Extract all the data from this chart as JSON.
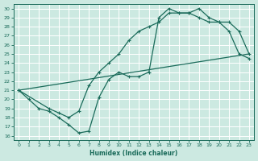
{
  "xlabel": "Humidex (Indice chaleur)",
  "xlim": [
    -0.5,
    23.5
  ],
  "ylim": [
    15.5,
    30.5
  ],
  "xticks": [
    0,
    1,
    2,
    3,
    4,
    5,
    6,
    7,
    8,
    9,
    10,
    11,
    12,
    13,
    14,
    15,
    16,
    17,
    18,
    19,
    20,
    21,
    22,
    23
  ],
  "yticks": [
    16,
    17,
    18,
    19,
    20,
    21,
    22,
    23,
    24,
    25,
    26,
    27,
    28,
    29,
    30
  ],
  "bg_color": "#cce9e1",
  "line_color": "#1a6b5a",
  "grid_color": "#ffffff",
  "line1_x": [
    0,
    1,
    2,
    3,
    4,
    5,
    6,
    7,
    8,
    9,
    10,
    11,
    12,
    13,
    14,
    15,
    16,
    17,
    18,
    19,
    20,
    21,
    22,
    23
  ],
  "line1_y": [
    21.0,
    20.0,
    19.0,
    18.7,
    18.0,
    17.2,
    16.3,
    16.5,
    20.2,
    22.2,
    23.0,
    22.5,
    22.5,
    23.0,
    29.0,
    30.0,
    29.5,
    29.5,
    30.0,
    29.0,
    28.5,
    27.5,
    25.0,
    24.5
  ],
  "line2_x": [
    0,
    3,
    4,
    5,
    6,
    7,
    8,
    9,
    10,
    11,
    12,
    13,
    14,
    15,
    16,
    17,
    18,
    19,
    20,
    21,
    22,
    23
  ],
  "line2_y": [
    21.0,
    19.0,
    18.5,
    18.0,
    18.7,
    21.5,
    23.0,
    24.0,
    25.0,
    26.5,
    27.5,
    28.0,
    28.5,
    29.5,
    29.5,
    29.5,
    29.0,
    28.5,
    28.5,
    28.5,
    27.5,
    25.0
  ],
  "line3_x": [
    0,
    23
  ],
  "line3_y": [
    21.0,
    25.0
  ]
}
